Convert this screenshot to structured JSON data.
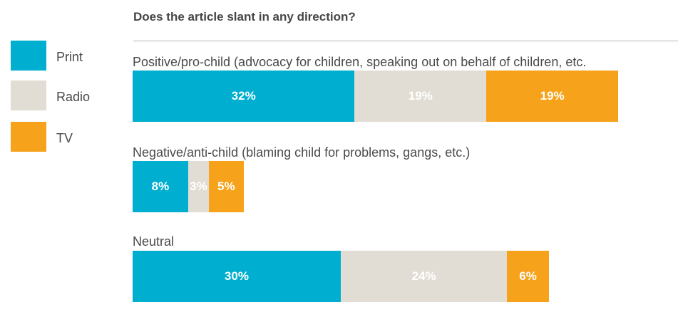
{
  "colors": {
    "Print": "#00afcf",
    "Radio": "#e2ddd4",
    "TV": "#f7a21b"
  },
  "chart_data": {
    "type": "bar",
    "orientation": "horizontal",
    "stacked": true,
    "title": "Does the article slant in any direction?",
    "categories": [
      "Positive/pro-child (advocacy for children, speaking out on behalf of children, etc.",
      "Negative/anti-child (blaming child for problems, gangs, etc.)",
      "Neutral"
    ],
    "series": [
      {
        "name": "Print",
        "values": [
          32,
          8,
          30
        ],
        "labels": [
          "32%",
          "8%",
          "30%"
        ]
      },
      {
        "name": "Radio",
        "values": [
          19,
          3,
          24
        ],
        "labels": [
          "19%",
          "3%",
          "24%"
        ]
      },
      {
        "name": "TV",
        "values": [
          19,
          5,
          6
        ],
        "labels": [
          "19%",
          "5%",
          "6%"
        ]
      }
    ],
    "legend": "left",
    "grid": false
  }
}
